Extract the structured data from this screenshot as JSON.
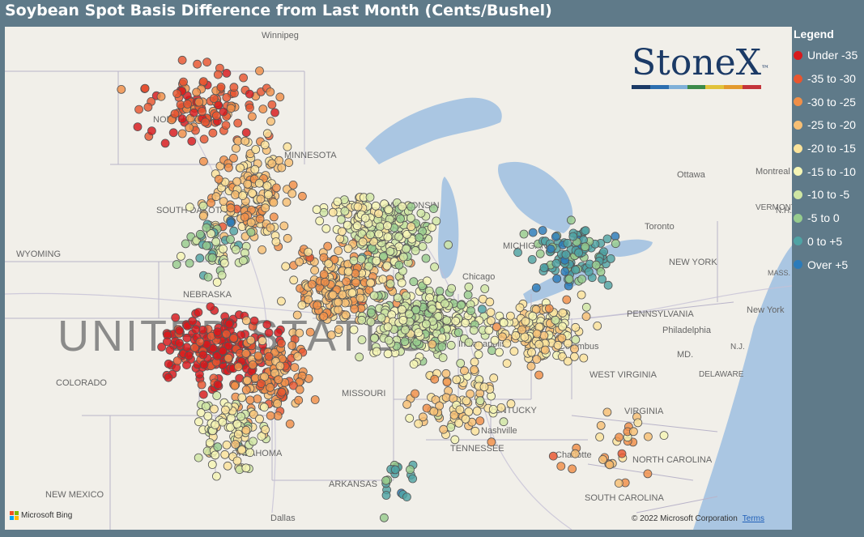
{
  "title": "Soybean Spot Basis Difference from Last Month (Cents/Bushel)",
  "legend": {
    "title": "Legend",
    "items": [
      {
        "label": "Under -35",
        "color": "#d7191c"
      },
      {
        "label": "-35 to -30",
        "color": "#e8562f"
      },
      {
        "label": "-30 to -25",
        "color": "#f08f48"
      },
      {
        "label": "-25 to -20",
        "color": "#f7bf74"
      },
      {
        "label": "-20 to -15",
        "color": "#fbe39b"
      },
      {
        "label": "-15 to -10",
        "color": "#f5f5b5"
      },
      {
        "label": "-10 to -5",
        "color": "#cfe6a3"
      },
      {
        "label": "-5 to 0",
        "color": "#97cc8e"
      },
      {
        "label": "0 to +5",
        "color": "#4fa3a4"
      },
      {
        "label": "Over +5",
        "color": "#2b7bba"
      }
    ]
  },
  "map": {
    "country_label": "UNITED STATES",
    "place_labels": [
      "Winnipeg",
      "NORTH DAKOTA",
      "MINNESOTA",
      "SOUTH DAKOTA",
      "WYOMING",
      "NEBRASKA",
      "COLORADO",
      "MISSOURI",
      "KENTUCKY",
      "TENNESSEE",
      "OKLAHOMA",
      "ARKANSAS",
      "NEW MEXICO",
      "Dallas",
      "Nashville",
      "Charlotte",
      "SOUTH CAROLINA",
      "NORTH CAROLINA",
      "VIRGINIA",
      "WEST VIRGINIA",
      "PENNSYLVANIA",
      "NEW YORK",
      "New York",
      "Philadelphia",
      "MD.",
      "N.J.",
      "DELAWARE",
      "Ottawa",
      "Montreal",
      "VERMONT",
      "N.H.",
      "MASS.",
      "Toronto",
      "Columbus",
      "Chicago",
      "Indianapolis",
      "WISCONSIN",
      "MICHIGAN"
    ]
  },
  "logo": {
    "text": "StoneX",
    "tm": "™"
  },
  "attribution": {
    "brand": "Microsoft Bing",
    "copyright": "© 2022 Microsoft Corporation",
    "terms": "Terms"
  }
}
